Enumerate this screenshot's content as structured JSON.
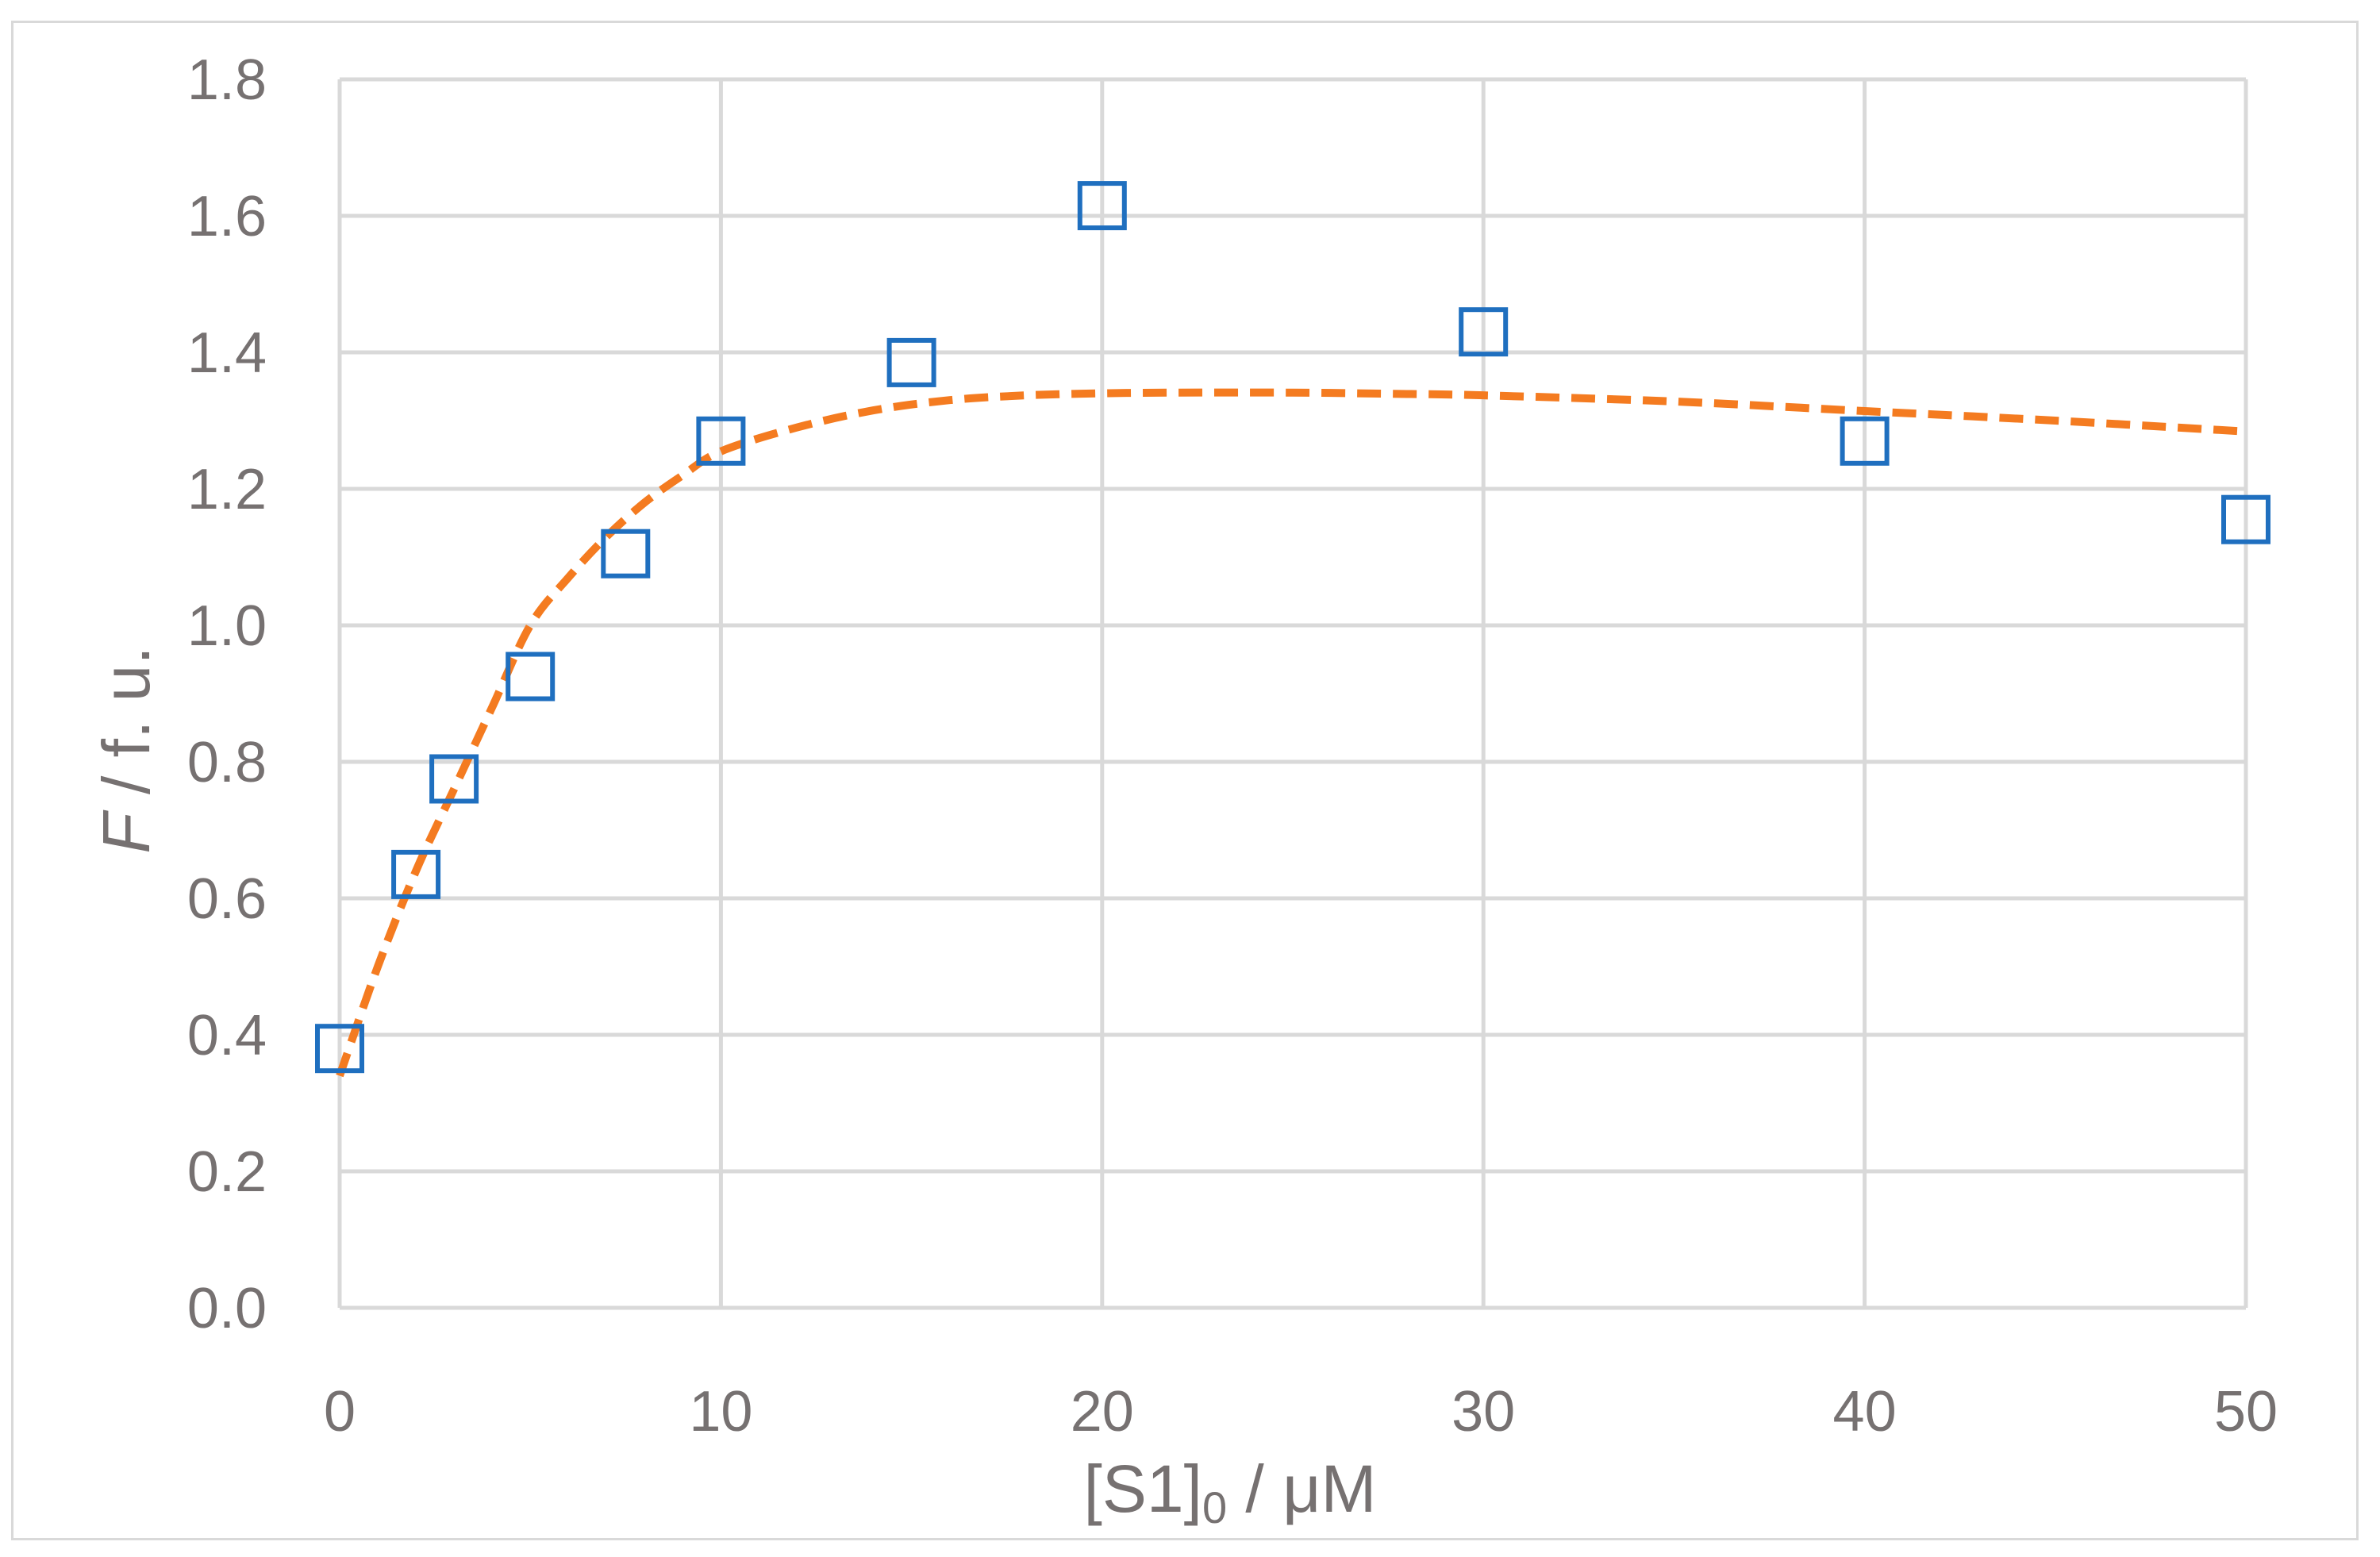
{
  "chart_data": {
    "type": "scatter",
    "title": "",
    "ylabel_italic": "F",
    "ylabel_rest": " / f. u.",
    "xlabel_main": "[S1]",
    "xlabel_sub": "0",
    "xlabel_rest": " / μM",
    "xlim": [
      0,
      50
    ],
    "ylim": [
      0,
      1.8
    ],
    "x_ticks": [
      0,
      10,
      20,
      30,
      40,
      50
    ],
    "x_tick_labels": [
      "0",
      "10",
      "20",
      "30",
      "40",
      "50"
    ],
    "y_ticks": [
      0,
      0.2,
      0.4,
      0.6,
      0.8,
      1.0,
      1.2,
      1.4,
      1.6,
      1.8
    ],
    "y_tick_labels": [
      "0.0",
      "0.2",
      "0.4",
      "0.6",
      "0.8",
      "1.0",
      "1.2",
      "1.4",
      "1.6",
      "1.8"
    ],
    "grid": true,
    "legend": "none",
    "series": [
      {
        "kind": "markers",
        "marker": "open-square",
        "color": "#1f6fbf",
        "x": [
          0,
          2,
          3,
          5,
          7.5,
          10,
          15,
          20,
          30,
          40,
          50
        ],
        "y": [
          0.38,
          0.635,
          0.775,
          0.925,
          1.105,
          1.27,
          1.385,
          1.615,
          1.43,
          1.27,
          1.155
        ]
      },
      {
        "kind": "fit-line",
        "style": "dashed",
        "color": "#f47b20",
        "x": [
          0,
          1,
          2,
          3,
          4,
          5,
          6,
          7,
          8,
          9,
          10,
          12,
          14,
          16,
          18,
          20,
          22,
          25,
          28,
          30,
          35,
          40,
          45,
          50
        ],
        "y": [
          0.34,
          0.5,
          0.64,
          0.76,
          0.88,
          1.0,
          1.07,
          1.13,
          1.18,
          1.22,
          1.255,
          1.29,
          1.315,
          1.33,
          1.337,
          1.34,
          1.341,
          1.341,
          1.339,
          1.337,
          1.328,
          1.314,
          1.3,
          1.284
        ]
      }
    ]
  }
}
